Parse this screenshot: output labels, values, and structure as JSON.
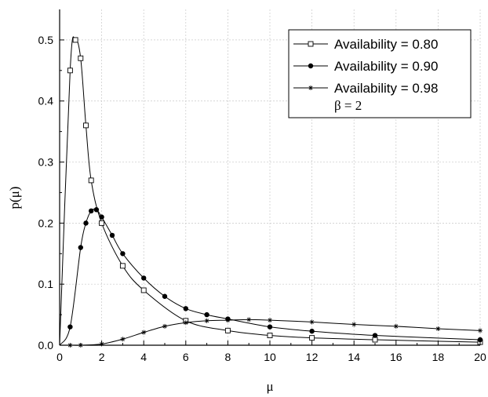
{
  "chart_data": {
    "type": "line",
    "xlabel": "μ",
    "ylabel": "p(μ)",
    "xlim": [
      0,
      20
    ],
    "ylim": [
      0,
      0.55
    ],
    "x_ticks": [
      0,
      2,
      4,
      6,
      8,
      10,
      12,
      14,
      16,
      18,
      20
    ],
    "y_ticks": [
      0.0,
      0.1,
      0.2,
      0.3,
      0.4,
      0.5
    ],
    "y_tick_labels": [
      "0.0",
      "0.1",
      "0.2",
      "0.3",
      "0.4",
      "0.5"
    ],
    "x_tick_labels": [
      "0",
      "2",
      "4",
      "6",
      "8",
      "10",
      "12",
      "14",
      "16",
      "18",
      "20"
    ],
    "grid": true,
    "legend_position": "top-right",
    "legend_note": "β = 2",
    "series": [
      {
        "name": "Availability = 0.80",
        "marker": "open-square",
        "color": "#000000",
        "x": [
          0.5,
          0.75,
          1.0,
          1.25,
          1.5,
          2.0,
          3.0,
          4.0,
          6.0,
          8.0,
          10.0,
          12.0,
          15.0,
          20.0
        ],
        "y": [
          0.45,
          0.5,
          0.47,
          0.36,
          0.27,
          0.2,
          0.13,
          0.09,
          0.04,
          0.024,
          0.016,
          0.012,
          0.009,
          0.005
        ]
      },
      {
        "name": "Availability = 0.90",
        "marker": "filled-circle",
        "color": "#000000",
        "x": [
          0.5,
          1.0,
          1.25,
          1.5,
          1.75,
          2.0,
          2.5,
          3.0,
          4.0,
          5.0,
          6.0,
          7.0,
          8.0,
          10.0,
          12.0,
          15.0,
          20.0
        ],
        "y": [
          0.03,
          0.16,
          0.2,
          0.22,
          0.222,
          0.21,
          0.18,
          0.15,
          0.11,
          0.08,
          0.06,
          0.05,
          0.043,
          0.03,
          0.023,
          0.016,
          0.009
        ]
      },
      {
        "name": "Availability = 0.98",
        "marker": "star",
        "color": "#000000",
        "x": [
          0.5,
          1.0,
          2.0,
          3.0,
          4.0,
          5.0,
          6.0,
          7.0,
          8.0,
          9.0,
          10.0,
          12.0,
          14.0,
          16.0,
          18.0,
          20.0
        ],
        "y": [
          0.0,
          0.0,
          0.002,
          0.01,
          0.021,
          0.031,
          0.037,
          0.04,
          0.041,
          0.042,
          0.041,
          0.038,
          0.034,
          0.031,
          0.027,
          0.024
        ]
      }
    ]
  }
}
